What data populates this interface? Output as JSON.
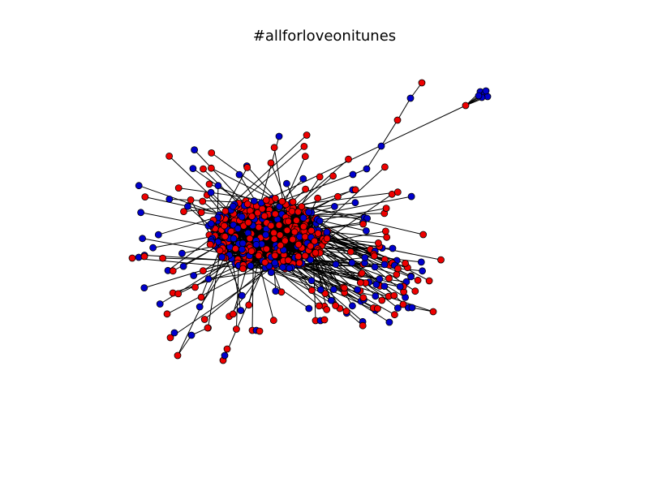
{
  "figure": {
    "title": "#allforloveonitunes"
  },
  "graph": {
    "type": "network",
    "node_colors": [
      "#ee0000",
      "#0000cc"
    ],
    "edge_color": "#000000",
    "node_outline": "#000000"
  }
}
